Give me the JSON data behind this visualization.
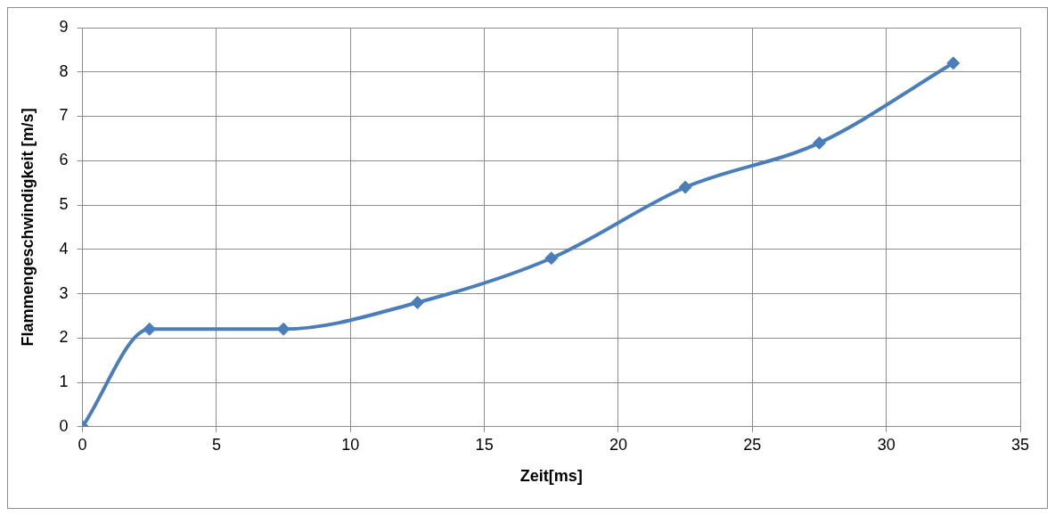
{
  "chart_data": {
    "type": "line",
    "xlabel": "Zeit[ms]",
    "ylabel": "Flammengeschwindigkeit [m/s]",
    "x": [
      0,
      2.5,
      7.5,
      12.5,
      17.5,
      22.5,
      27.5,
      32.5
    ],
    "series": [
      {
        "color": "#4a7ebb",
        "values": [
          0,
          2.2,
          2.2,
          2.8,
          3.8,
          5.4,
          6.4,
          8.2
        ]
      }
    ],
    "xlim": [
      0,
      35
    ],
    "xticks": [
      0,
      5,
      10,
      15,
      20,
      25,
      30,
      35
    ],
    "ylim": [
      0,
      9
    ],
    "yticks": [
      0,
      1,
      2,
      3,
      4,
      5,
      6,
      7,
      8,
      9
    ],
    "grid": true,
    "legend": false,
    "marker": "diamond",
    "line_style": "solid"
  }
}
